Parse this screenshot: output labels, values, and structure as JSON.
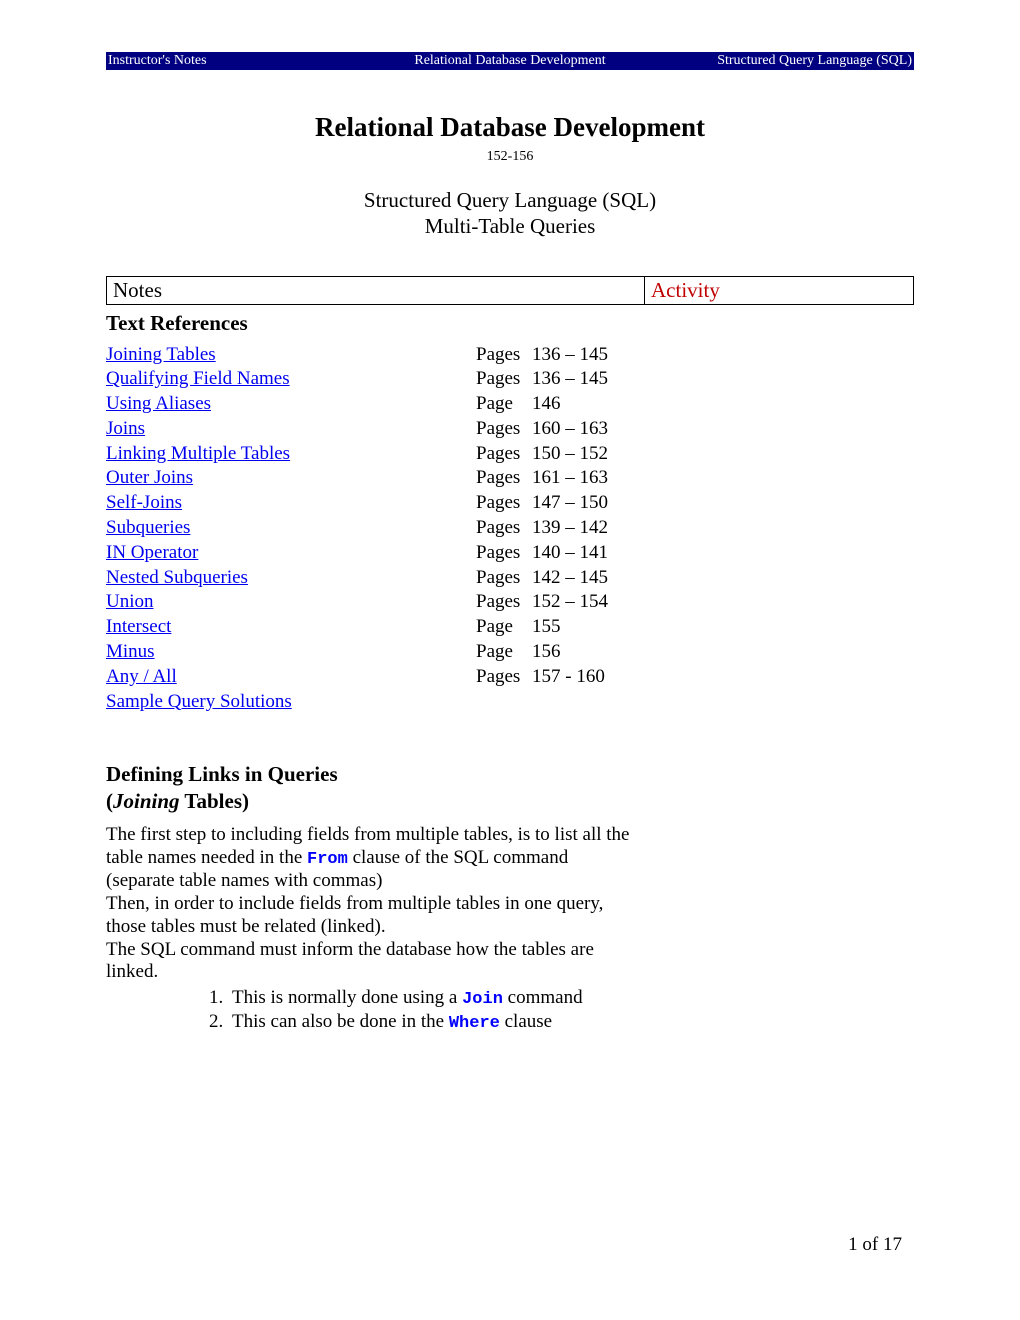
{
  "header": {
    "left": "Instructor's Notes",
    "center": "Relational Database Development",
    "right": "Structured Query Language (SQL)"
  },
  "title": "Relational Database Development",
  "subcode": "152-156",
  "subtitle_line1": "Structured Query Language (SQL)",
  "subtitle_line2": "Multi-Table Queries",
  "table_headers": {
    "notes": "Notes",
    "activity": "Activity"
  },
  "text_references_heading": "Text References",
  "refs": [
    {
      "topic": "Joining Tables",
      "pages_label": "Pages",
      "pages": "136 – 145"
    },
    {
      "topic": "Qualifying Field Names",
      "pages_label": "Pages",
      "pages": "136 – 145"
    },
    {
      "topic": "Using Aliases",
      "pages_label": "Page",
      "pages": "146"
    },
    {
      "topic": "Joins",
      "pages_label": "Pages",
      "pages": "160 – 163"
    },
    {
      "topic": "Linking Multiple Tables",
      "pages_label": "Pages",
      "pages": "150 – 152"
    },
    {
      "topic": "Outer Joins",
      "pages_label": "Pages",
      "pages": "161 – 163"
    },
    {
      "topic": "Self-Joins",
      "pages_label": "Pages",
      "pages": "147 – 150"
    },
    {
      "topic": "Subqueries",
      "pages_label": "Pages",
      "pages": "139 – 142"
    },
    {
      "topic": "IN Operator",
      "pages_label": "Pages",
      "pages": "140 – 141"
    },
    {
      "topic": "Nested Subqueries",
      "pages_label": "Pages",
      "pages": "142 – 145"
    },
    {
      "topic": "Union",
      "pages_label": "Pages",
      "pages": "152 – 154"
    },
    {
      "topic": "Intersect",
      "pages_label": "Page",
      "pages": "155"
    },
    {
      "topic": "Minus",
      "pages_label": "Page",
      "pages": "156"
    },
    {
      "topic": "Any / All",
      "pages_label": "Pages",
      "pages": "157 -  160"
    },
    {
      "topic": "Sample Query Solutions",
      "pages_label": "",
      "pages": ""
    }
  ],
  "section2": {
    "line1": "Defining Links in Queries",
    "line2_pre": " (",
    "line2_italic": "Joining",
    "line2_post": " Tables)"
  },
  "body": {
    "p1a": "The first step to including fields from multiple tables, is to list all the table names needed in the ",
    "p1_kw": "From",
    "p1b": " clause of the SQL command (separate table names with commas)",
    "p2": "Then, in order to include fields from multiple tables in one query, those tables must be related (linked).",
    "p3": "The SQL command must inform the database how the tables are linked.",
    "li1a": "This is normally done using a ",
    "li1_kw": "Join",
    "li1b": " command",
    "li2a": "This can also be done in the ",
    "li2_kw": "Where",
    "li2b": " clause"
  },
  "page_number": "1 of 17",
  "colors": {
    "header_bg": "#000080",
    "header_fg": "#ffffff",
    "link": "#0000ee",
    "activity": "#c00000",
    "code_kw": "#0000ff"
  }
}
